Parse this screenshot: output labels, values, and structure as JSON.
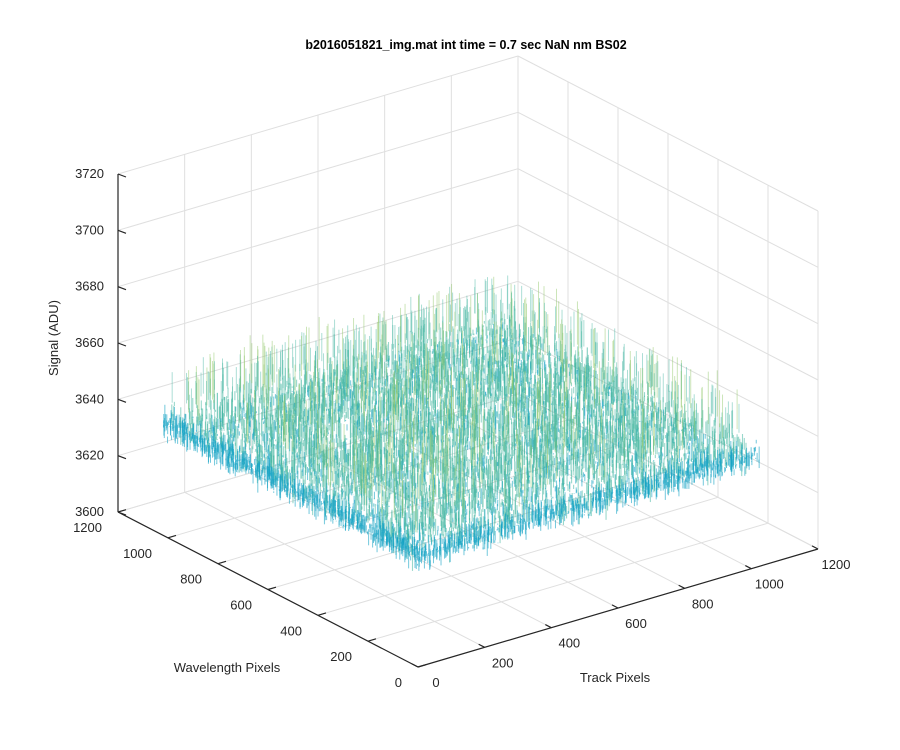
{
  "chart_data": {
    "type": "surface",
    "title": "b2016051821_img.mat int time = 0.7 sec  NaN nm BS02",
    "xlabel": "Track Pixels",
    "ylabel": "Wavelength Pixels",
    "zlabel": "Signal (ADU)",
    "xlim": [
      0,
      1200
    ],
    "ylim": [
      0,
      1200
    ],
    "zlim": [
      3600,
      3720
    ],
    "xticks": [
      "0",
      "200",
      "400",
      "600",
      "800",
      "1000",
      "1200"
    ],
    "yticks": [
      "0",
      "200",
      "400",
      "600",
      "800",
      "1000",
      "1200"
    ],
    "zticks": [
      "3600",
      "3620",
      "3640",
      "3660",
      "3680",
      "3700",
      "3720"
    ],
    "surface": {
      "x_range": [
        0,
        1024
      ],
      "y_range": [
        0,
        1024
      ],
      "mean_signal": 3640,
      "noise_range": [
        3605,
        3695
      ],
      "colormap": [
        "#0072bd",
        "#16a4c4",
        "#47b8a3",
        "#8ec663",
        "#d4c43a"
      ]
    },
    "grid": true
  }
}
